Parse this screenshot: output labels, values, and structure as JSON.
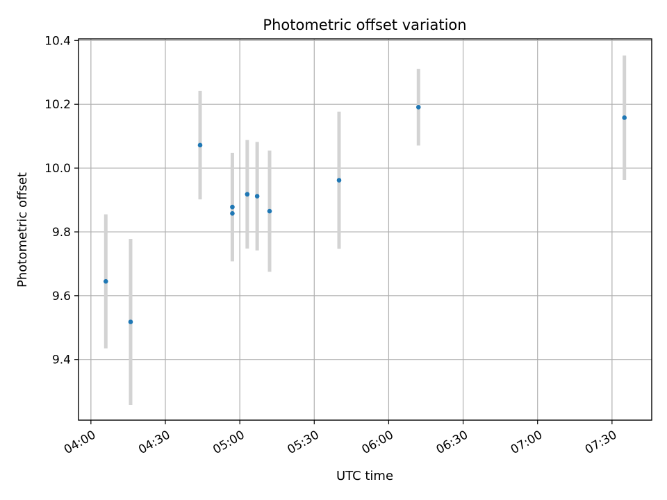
{
  "chart_data": {
    "type": "scatter",
    "title": "Photometric offset variation",
    "xlabel": "UTC time",
    "ylabel": "Photometric offset",
    "x_ticks": [
      "04:00",
      "04:30",
      "05:00",
      "05:30",
      "06:00",
      "06:30",
      "07:00",
      "07:30"
    ],
    "y_ticks": [
      9.4,
      9.6,
      9.8,
      10.0,
      10.2,
      10.4
    ],
    "xlim": [
      "03:55",
      "07:46"
    ],
    "ylim": [
      9.21,
      10.405
    ],
    "grid": true,
    "series": [
      {
        "x": [
          "04:06",
          "04:16",
          "04:44",
          "04:57",
          "04:57",
          "05:03",
          "05:07",
          "05:12",
          "05:40",
          "06:12",
          "07:35"
        ],
        "y": [
          9.645,
          9.518,
          10.072,
          9.858,
          9.878,
          9.918,
          9.912,
          9.865,
          9.962,
          10.191,
          10.158
        ],
        "error": [
          0.21,
          0.26,
          0.17,
          0.15,
          0.17,
          0.17,
          0.17,
          0.19,
          0.215,
          0.12,
          0.195
        ]
      }
    ],
    "colors": {
      "point": "#1f77b4",
      "errorbar": "#d3d3d3",
      "grid": "#b0b0b0"
    }
  }
}
